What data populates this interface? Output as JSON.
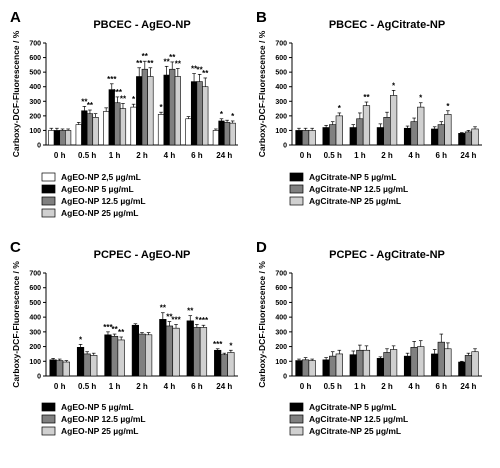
{
  "chart_data": [
    {
      "type": "bar",
      "panel": "A",
      "title": "PBCEC - AgEO-NP",
      "ylabel": "Carboxy-DCF-Fluorescence / %",
      "ylim": [
        0,
        700
      ],
      "yticks": [
        0,
        100,
        200,
        300,
        400,
        500,
        600,
        700
      ],
      "categories": [
        "0 h",
        "0.5 h",
        "1 h",
        "2 h",
        "4 h",
        "6 h",
        "24 h"
      ],
      "series": [
        {
          "name": "AgEO-NP 2,5 µg/mL",
          "fill": "#ffffff",
          "values": [
            100,
            140,
            230,
            260,
            210,
            180,
            100
          ],
          "errors": [
            15,
            15,
            25,
            20,
            15,
            15,
            10
          ],
          "sig": [
            "",
            "",
            "",
            "*",
            "*",
            "",
            ""
          ]
        },
        {
          "name": "AgEO-NP 5 µg/mL",
          "fill": "#000000",
          "values": [
            100,
            235,
            380,
            470,
            480,
            435,
            165
          ],
          "errors": [
            15,
            30,
            40,
            60,
            60,
            55,
            15
          ],
          "sig": [
            "",
            "**",
            "***",
            "**",
            "**",
            "**",
            "*"
          ]
        },
        {
          "name": "AgEO-NP 12.5 µg/mL",
          "fill": "#808080",
          "values": [
            100,
            215,
            290,
            520,
            520,
            435,
            155
          ],
          "errors": [
            10,
            25,
            40,
            55,
            50,
            50,
            15
          ],
          "sig": [
            "",
            "**",
            "***",
            "**",
            "**",
            "**",
            ""
          ]
        },
        {
          "name": "AgEO-NP 25 µg/mL",
          "fill": "#d0d0d0",
          "values": [
            100,
            190,
            250,
            470,
            470,
            400,
            150
          ],
          "errors": [
            10,
            25,
            35,
            60,
            55,
            60,
            15
          ],
          "sig": [
            "",
            "",
            "**",
            "**",
            "**",
            "**",
            "*"
          ]
        }
      ]
    },
    {
      "type": "bar",
      "panel": "B",
      "title": "PBCEC - AgCitrate-NP",
      "ylabel": "Carboxy-DCF-Fluorescence / %",
      "ylim": [
        0,
        700
      ],
      "yticks": [
        0,
        100,
        200,
        300,
        400,
        500,
        600,
        700
      ],
      "categories": [
        "0 h",
        "0.5 h",
        "1 h",
        "2 h",
        "4 h",
        "6 h",
        "24 h"
      ],
      "series": [
        {
          "name": "AgCitrate-NP 5 µg/mL",
          "fill": "#000000",
          "values": [
            100,
            120,
            120,
            120,
            115,
            110,
            80
          ],
          "errors": [
            15,
            15,
            20,
            25,
            15,
            15,
            5
          ],
          "sig": [
            "",
            "",
            "",
            "",
            "",
            "",
            ""
          ]
        },
        {
          "name": "AgCitrate-NP 12.5 µg/mL",
          "fill": "#808080",
          "values": [
            100,
            140,
            180,
            190,
            160,
            140,
            90
          ],
          "errors": [
            15,
            20,
            40,
            35,
            25,
            20,
            10
          ],
          "sig": [
            "",
            "",
            "",
            "",
            "",
            "",
            ""
          ]
        },
        {
          "name": "AgCitrate-NP 25 µg/mL",
          "fill": "#d0d0d0",
          "values": [
            100,
            200,
            270,
            340,
            260,
            210,
            110
          ],
          "errors": [
            15,
            20,
            25,
            35,
            30,
            25,
            15
          ],
          "sig": [
            "",
            "*",
            "**",
            "*",
            "*",
            "*",
            ""
          ]
        }
      ]
    },
    {
      "type": "bar",
      "panel": "C",
      "title": "PCPEC - AgEO-NP",
      "ylabel": "Carboxy-DCF-Fluorescence / %",
      "ylim": [
        0,
        700
      ],
      "yticks": [
        0,
        100,
        200,
        300,
        400,
        500,
        600,
        700
      ],
      "categories": [
        "0 h",
        "0.5 h",
        "1 h",
        "2 h",
        "4 h",
        "6 h",
        "24 h"
      ],
      "series": [
        {
          "name": "AgEO-NP 5 µg/mL",
          "fill": "#000000",
          "values": [
            110,
            195,
            280,
            345,
            385,
            375,
            175
          ],
          "errors": [
            10,
            20,
            20,
            10,
            45,
            35,
            10
          ],
          "sig": [
            "",
            "*",
            "***",
            "",
            "**",
            "**",
            "***"
          ]
        },
        {
          "name": "AgEO-NP 12.5 µg/mL",
          "fill": "#808080",
          "values": [
            105,
            150,
            270,
            285,
            340,
            330,
            145
          ],
          "errors": [
            10,
            15,
            15,
            10,
            30,
            20,
            10
          ],
          "sig": [
            "",
            "",
            "**",
            "",
            "**",
            "*",
            ""
          ]
        },
        {
          "name": "AgEO-NP 25 µg/mL",
          "fill": "#d0d0d0",
          "values": [
            95,
            140,
            245,
            280,
            325,
            330,
            160
          ],
          "errors": [
            10,
            15,
            20,
            15,
            25,
            15,
            15
          ],
          "sig": [
            "",
            "",
            "**",
            "",
            "***",
            "***",
            "*"
          ]
        }
      ]
    },
    {
      "type": "bar",
      "panel": "D",
      "title": "PCPEC - AgCitrate-NP",
      "ylabel": "Carboxy-DCF-Fluorescence / %",
      "ylim": [
        0,
        700
      ],
      "yticks": [
        0,
        100,
        200,
        300,
        400,
        500,
        600,
        700
      ],
      "categories": [
        "0 h",
        "0.5 h",
        "1 h",
        "2 h",
        "4 h",
        "6 h",
        "24 h"
      ],
      "series": [
        {
          "name": "AgCitrate-NP 5 µg/mL",
          "fill": "#000000",
          "values": [
            105,
            110,
            145,
            120,
            135,
            150,
            95
          ],
          "errors": [
            10,
            15,
            25,
            10,
            20,
            30,
            5
          ],
          "sig": [
            "",
            "",
            "",
            "",
            "",
            "",
            ""
          ]
        },
        {
          "name": "AgCitrate-NP 12.5 µg/mL",
          "fill": "#808080",
          "values": [
            110,
            135,
            175,
            160,
            195,
            230,
            140
          ],
          "errors": [
            15,
            30,
            35,
            25,
            40,
            55,
            15
          ],
          "sig": [
            "",
            "",
            "",
            "",
            "",
            "",
            ""
          ]
        },
        {
          "name": "AgCitrate-NP 25 µg/mL",
          "fill": "#d0d0d0",
          "values": [
            105,
            150,
            175,
            180,
            200,
            185,
            165
          ],
          "errors": [
            10,
            25,
            30,
            25,
            40,
            40,
            20
          ],
          "sig": [
            "",
            "",
            "",
            "",
            "",
            "",
            ""
          ]
        }
      ]
    }
  ]
}
